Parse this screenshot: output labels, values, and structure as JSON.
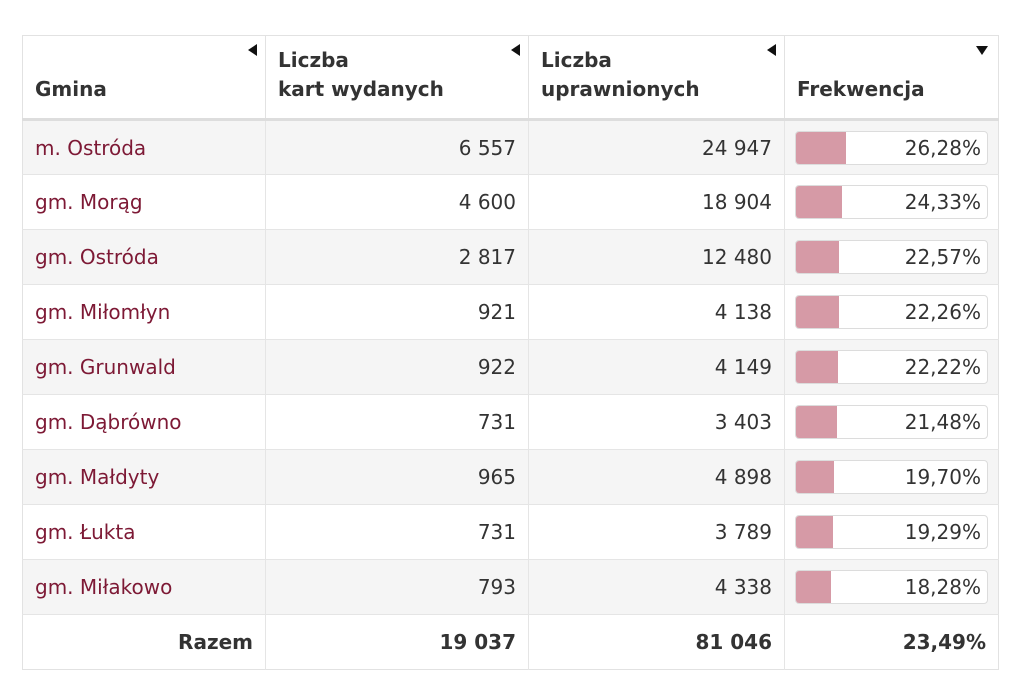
{
  "header": {
    "gmina": "Gmina",
    "karty": "Liczba\nkart wydanych",
    "uprawnieni": "Liczba\nuprawnionych",
    "frekwencja": "Frekwencja"
  },
  "rows": [
    {
      "name": "m. Ostróda",
      "karty": "6 557",
      "uprawnieni": "24 947",
      "frekwencja": "26,28%",
      "pct": 26.28
    },
    {
      "name": "gm. Morąg",
      "karty": "4 600",
      "uprawnieni": "18 904",
      "frekwencja": "24,33%",
      "pct": 24.33
    },
    {
      "name": "gm. Ostróda",
      "karty": "2 817",
      "uprawnieni": "12 480",
      "frekwencja": "22,57%",
      "pct": 22.57
    },
    {
      "name": "gm. Miłomłyn",
      "karty": "921",
      "uprawnieni": "4 138",
      "frekwencja": "22,26%",
      "pct": 22.26
    },
    {
      "name": "gm. Grunwald",
      "karty": "922",
      "uprawnieni": "4 149",
      "frekwencja": "22,22%",
      "pct": 22.22
    },
    {
      "name": "gm. Dąbrówno",
      "karty": "731",
      "uprawnieni": "3 403",
      "frekwencja": "21,48%",
      "pct": 21.48
    },
    {
      "name": "gm. Małdyty",
      "karty": "965",
      "uprawnieni": "4 898",
      "frekwencja": "19,70%",
      "pct": 19.7
    },
    {
      "name": "gm. Łukta",
      "karty": "731",
      "uprawnieni": "3 789",
      "frekwencja": "19,29%",
      "pct": 19.29
    },
    {
      "name": "gm. Miłakowo",
      "karty": "793",
      "uprawnieni": "4 338",
      "frekwencja": "18,28%",
      "pct": 18.28
    }
  ],
  "total": {
    "label": "Razem",
    "karty": "19 037",
    "uprawnieni": "81 046",
    "frekwencja": "23,49%"
  },
  "icons": {
    "gmina_sort": "sort-left-icon",
    "karty_sort": "sort-left-icon",
    "uprawnieni_sort": "sort-left-icon",
    "frekwencja_sort": "sort-down-icon"
  },
  "colors": {
    "name_link": "#7d1935",
    "bar_fill": "#d69aa6",
    "stripe": "#f5f5f5"
  }
}
